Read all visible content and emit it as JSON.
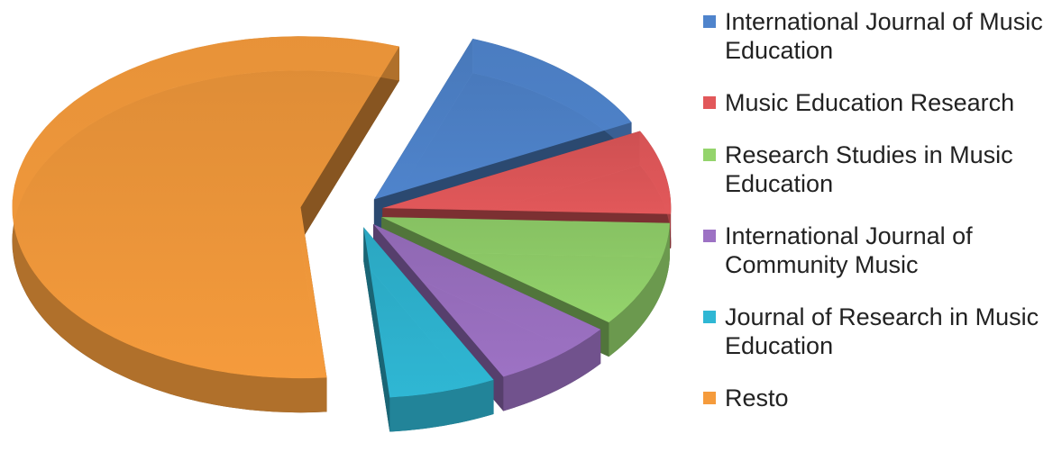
{
  "chart_data": {
    "type": "pie",
    "categories": [
      "International Journal of Music Education",
      "Music Education Research",
      "Research Studies in Music Education",
      "International Journal of Community Music",
      "Journal of Research in Music Education",
      "Resto"
    ],
    "values": [
      12,
      8,
      10,
      7,
      6,
      57
    ],
    "colors": [
      "#4f84cc",
      "#e2585a",
      "#94d46c",
      "#9d72c4",
      "#2fb7d4",
      "#f59b3c"
    ],
    "legend": "right"
  }
}
